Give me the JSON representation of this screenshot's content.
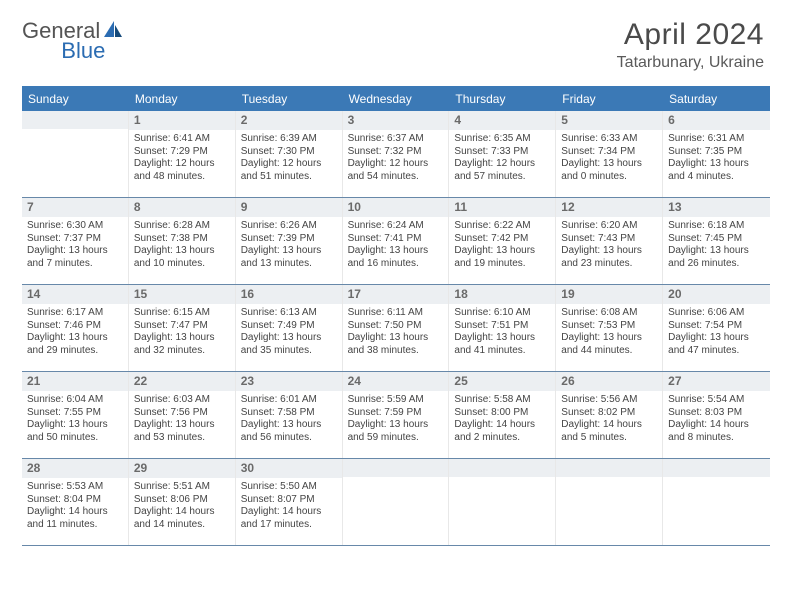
{
  "brand": {
    "general": "General",
    "blue": "Blue"
  },
  "title": "April 2024",
  "location": "Tatarbunary, Ukraine",
  "colors": {
    "header_blue": "#3b79b6",
    "brand_blue": "#2b6cb2",
    "grey_text": "#545454",
    "daybar_bg": "#eceff2",
    "week_border": "#6788a9"
  },
  "dow": [
    "Sunday",
    "Monday",
    "Tuesday",
    "Wednesday",
    "Thursday",
    "Friday",
    "Saturday"
  ],
  "blanks_before": 1,
  "days": [
    {
      "n": "1",
      "sunrise": "Sunrise: 6:41 AM",
      "sunset": "Sunset: 7:29 PM",
      "day1": "Daylight: 12 hours",
      "day2": "and 48 minutes."
    },
    {
      "n": "2",
      "sunrise": "Sunrise: 6:39 AM",
      "sunset": "Sunset: 7:30 PM",
      "day1": "Daylight: 12 hours",
      "day2": "and 51 minutes."
    },
    {
      "n": "3",
      "sunrise": "Sunrise: 6:37 AM",
      "sunset": "Sunset: 7:32 PM",
      "day1": "Daylight: 12 hours",
      "day2": "and 54 minutes."
    },
    {
      "n": "4",
      "sunrise": "Sunrise: 6:35 AM",
      "sunset": "Sunset: 7:33 PM",
      "day1": "Daylight: 12 hours",
      "day2": "and 57 minutes."
    },
    {
      "n": "5",
      "sunrise": "Sunrise: 6:33 AM",
      "sunset": "Sunset: 7:34 PM",
      "day1": "Daylight: 13 hours",
      "day2": "and 0 minutes."
    },
    {
      "n": "6",
      "sunrise": "Sunrise: 6:31 AM",
      "sunset": "Sunset: 7:35 PM",
      "day1": "Daylight: 13 hours",
      "day2": "and 4 minutes."
    },
    {
      "n": "7",
      "sunrise": "Sunrise: 6:30 AM",
      "sunset": "Sunset: 7:37 PM",
      "day1": "Daylight: 13 hours",
      "day2": "and 7 minutes."
    },
    {
      "n": "8",
      "sunrise": "Sunrise: 6:28 AM",
      "sunset": "Sunset: 7:38 PM",
      "day1": "Daylight: 13 hours",
      "day2": "and 10 minutes."
    },
    {
      "n": "9",
      "sunrise": "Sunrise: 6:26 AM",
      "sunset": "Sunset: 7:39 PM",
      "day1": "Daylight: 13 hours",
      "day2": "and 13 minutes."
    },
    {
      "n": "10",
      "sunrise": "Sunrise: 6:24 AM",
      "sunset": "Sunset: 7:41 PM",
      "day1": "Daylight: 13 hours",
      "day2": "and 16 minutes."
    },
    {
      "n": "11",
      "sunrise": "Sunrise: 6:22 AM",
      "sunset": "Sunset: 7:42 PM",
      "day1": "Daylight: 13 hours",
      "day2": "and 19 minutes."
    },
    {
      "n": "12",
      "sunrise": "Sunrise: 6:20 AM",
      "sunset": "Sunset: 7:43 PM",
      "day1": "Daylight: 13 hours",
      "day2": "and 23 minutes."
    },
    {
      "n": "13",
      "sunrise": "Sunrise: 6:18 AM",
      "sunset": "Sunset: 7:45 PM",
      "day1": "Daylight: 13 hours",
      "day2": "and 26 minutes."
    },
    {
      "n": "14",
      "sunrise": "Sunrise: 6:17 AM",
      "sunset": "Sunset: 7:46 PM",
      "day1": "Daylight: 13 hours",
      "day2": "and 29 minutes."
    },
    {
      "n": "15",
      "sunrise": "Sunrise: 6:15 AM",
      "sunset": "Sunset: 7:47 PM",
      "day1": "Daylight: 13 hours",
      "day2": "and 32 minutes."
    },
    {
      "n": "16",
      "sunrise": "Sunrise: 6:13 AM",
      "sunset": "Sunset: 7:49 PM",
      "day1": "Daylight: 13 hours",
      "day2": "and 35 minutes."
    },
    {
      "n": "17",
      "sunrise": "Sunrise: 6:11 AM",
      "sunset": "Sunset: 7:50 PM",
      "day1": "Daylight: 13 hours",
      "day2": "and 38 minutes."
    },
    {
      "n": "18",
      "sunrise": "Sunrise: 6:10 AM",
      "sunset": "Sunset: 7:51 PM",
      "day1": "Daylight: 13 hours",
      "day2": "and 41 minutes."
    },
    {
      "n": "19",
      "sunrise": "Sunrise: 6:08 AM",
      "sunset": "Sunset: 7:53 PM",
      "day1": "Daylight: 13 hours",
      "day2": "and 44 minutes."
    },
    {
      "n": "20",
      "sunrise": "Sunrise: 6:06 AM",
      "sunset": "Sunset: 7:54 PM",
      "day1": "Daylight: 13 hours",
      "day2": "and 47 minutes."
    },
    {
      "n": "21",
      "sunrise": "Sunrise: 6:04 AM",
      "sunset": "Sunset: 7:55 PM",
      "day1": "Daylight: 13 hours",
      "day2": "and 50 minutes."
    },
    {
      "n": "22",
      "sunrise": "Sunrise: 6:03 AM",
      "sunset": "Sunset: 7:56 PM",
      "day1": "Daylight: 13 hours",
      "day2": "and 53 minutes."
    },
    {
      "n": "23",
      "sunrise": "Sunrise: 6:01 AM",
      "sunset": "Sunset: 7:58 PM",
      "day1": "Daylight: 13 hours",
      "day2": "and 56 minutes."
    },
    {
      "n": "24",
      "sunrise": "Sunrise: 5:59 AM",
      "sunset": "Sunset: 7:59 PM",
      "day1": "Daylight: 13 hours",
      "day2": "and 59 minutes."
    },
    {
      "n": "25",
      "sunrise": "Sunrise: 5:58 AM",
      "sunset": "Sunset: 8:00 PM",
      "day1": "Daylight: 14 hours",
      "day2": "and 2 minutes."
    },
    {
      "n": "26",
      "sunrise": "Sunrise: 5:56 AM",
      "sunset": "Sunset: 8:02 PM",
      "day1": "Daylight: 14 hours",
      "day2": "and 5 minutes."
    },
    {
      "n": "27",
      "sunrise": "Sunrise: 5:54 AM",
      "sunset": "Sunset: 8:03 PM",
      "day1": "Daylight: 14 hours",
      "day2": "and 8 minutes."
    },
    {
      "n": "28",
      "sunrise": "Sunrise: 5:53 AM",
      "sunset": "Sunset: 8:04 PM",
      "day1": "Daylight: 14 hours",
      "day2": "and 11 minutes."
    },
    {
      "n": "29",
      "sunrise": "Sunrise: 5:51 AM",
      "sunset": "Sunset: 8:06 PM",
      "day1": "Daylight: 14 hours",
      "day2": "and 14 minutes."
    },
    {
      "n": "30",
      "sunrise": "Sunrise: 5:50 AM",
      "sunset": "Sunset: 8:07 PM",
      "day1": "Daylight: 14 hours",
      "day2": "and 17 minutes."
    }
  ]
}
